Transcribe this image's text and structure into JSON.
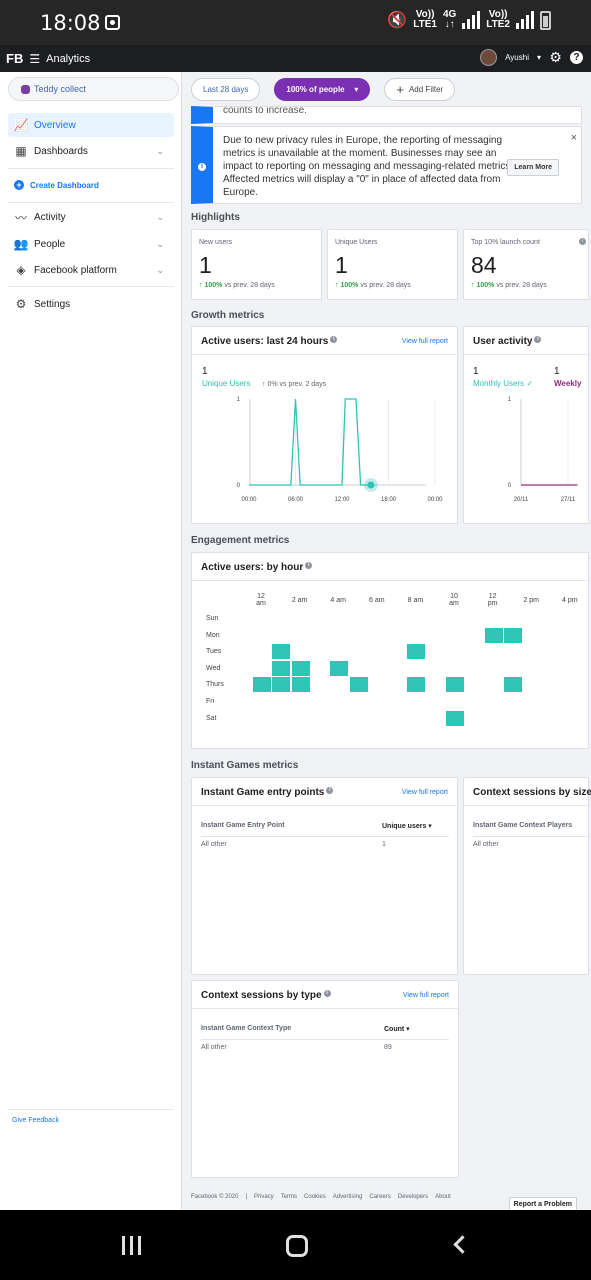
{
  "status_bar": {
    "time": "18:08",
    "net1": "Vo))",
    "net1b": "LTE1",
    "net_type": "4G",
    "net_arrows": "↓↑",
    "net2": "Vo))",
    "net2b": "LTE2"
  },
  "top_nav": {
    "logo": "FB",
    "menu_glyph": "☰",
    "title": "Analytics",
    "user": "Ayushi",
    "help": "?"
  },
  "sidebar": {
    "app_name": "Teddy collect",
    "items": [
      {
        "label": "Overview"
      },
      {
        "label": "Dashboards"
      },
      {
        "label": "Create Dashboard"
      },
      {
        "label": "Activity"
      },
      {
        "label": "People"
      },
      {
        "label": "Facebook platform"
      },
      {
        "label": "Settings"
      }
    ],
    "give_feedback": "Give Feedback"
  },
  "filters": {
    "date": "Last 28 days",
    "people": "100% of people",
    "add": "Add Filter"
  },
  "notice_partial": "counts to increase.",
  "notice": {
    "text": "Due to new privacy rules in Europe, the reporting of messaging metrics is unavailable at the moment. Businesses may see an impact to reporting on messaging and messaging-related metrics. Affected metrics will display a \"0\" in place of affected data from Europe.",
    "learn_more": "Learn More",
    "close": "×"
  },
  "highlights": {
    "title": "Highlights",
    "cards": [
      {
        "label": "New users",
        "value": "1",
        "pct": "↑ 100%",
        "vs": "vs prev. 28 days"
      },
      {
        "label": "Unique Users",
        "value": "1",
        "pct": "↑ 100%",
        "vs": "vs prev. 28 days"
      },
      {
        "label": "Top 10% launch count",
        "value": "84",
        "pct": "↑ 100%",
        "vs": "vs prev. 28 days"
      }
    ]
  },
  "growth": {
    "title": "Growth metrics",
    "active_users": {
      "title": "Active users: last 24 hours",
      "view_report": "View full report",
      "value": "1",
      "label": "Unique Users",
      "change": "↑ 0% vs prev. 2 days"
    },
    "user_activity": {
      "title": "User activity",
      "value1": "1",
      "label1": "Monthly Users ✓",
      "value2": "1",
      "label2": "Weekly"
    }
  },
  "chart_data": [
    {
      "type": "line",
      "title": "Active users: last 24 hours",
      "x": [
        "00:00",
        "06:00",
        "12:00",
        "18:00",
        "00:00"
      ],
      "yticks": [
        "0",
        "1"
      ],
      "ylim": [
        0,
        1
      ],
      "grid": true,
      "series": [
        {
          "name": "Unique Users",
          "color": "#2ec4b6",
          "points": [
            [
              0,
              0
            ],
            [
              0.9,
              0
            ],
            [
              1.0,
              1
            ],
            [
              1.1,
              0
            ],
            [
              2.0,
              0
            ],
            [
              2.07,
              1
            ],
            [
              2.3,
              1
            ],
            [
              2.4,
              0
            ],
            [
              2.6,
              0
            ]
          ]
        }
      ]
    },
    {
      "type": "line",
      "title": "User activity",
      "x": [
        "20/11",
        "27/11"
      ],
      "yticks": [
        "0",
        "1"
      ],
      "ylim": [
        0,
        1
      ],
      "grid": true,
      "series": [
        {
          "name": "Weekly",
          "color": "#8e2c7b",
          "points": [
            [
              0,
              0
            ],
            [
              1.2,
              0
            ]
          ]
        }
      ]
    },
    {
      "type": "heatmap",
      "title": "Active users: by hour",
      "hours": [
        "12 am",
        "2 am",
        "4 am",
        "6 am",
        "8 am",
        "10 am",
        "12 pm",
        "2 pm",
        "4 pm"
      ],
      "days": [
        "Sun",
        "Mon",
        "Tues",
        "Wed",
        "Thurs",
        "Fri",
        "Sat"
      ],
      "cells": [
        {
          "day": 1,
          "hour": 12
        },
        {
          "day": 1,
          "hour": 13
        },
        {
          "day": 2,
          "hour": 1
        },
        {
          "day": 2,
          "hour": 8
        },
        {
          "day": 3,
          "hour": 1
        },
        {
          "day": 3,
          "hour": 2
        },
        {
          "day": 3,
          "hour": 4
        },
        {
          "day": 4,
          "hour": 0
        },
        {
          "day": 4,
          "hour": 1
        },
        {
          "day": 4,
          "hour": 2
        },
        {
          "day": 4,
          "hour": 5
        },
        {
          "day": 4,
          "hour": 8
        },
        {
          "day": 4,
          "hour": 10
        },
        {
          "day": 4,
          "hour": 13
        },
        {
          "day": 6,
          "hour": 10
        }
      ]
    }
  ],
  "engagement": {
    "title": "Engagement metrics",
    "heatmap_title": "Active users: by hour"
  },
  "instant_games": {
    "title": "Instant Games metrics",
    "entry_points": {
      "title": "Instant Game entry points",
      "view_report": "View full report",
      "col1": "Instant Game Entry Point",
      "col2": "Unique users ▾",
      "row1_c1": "All other",
      "row1_c2": "1"
    },
    "sessions_size": {
      "title": "Context sessions by size",
      "col1": "Instant Game Context Players",
      "row1_c1": "All other"
    },
    "sessions_type": {
      "title": "Context sessions by type",
      "view_report": "View full report",
      "col1": "Instant Game Context Type",
      "col2": "Count ▾",
      "row1_c1": "All other",
      "row1_c2": "89"
    }
  },
  "footer": {
    "links": [
      "Facebook © 2020",
      "|",
      "Privacy",
      "Terms",
      "Cookies",
      "Advertising",
      "Careers",
      "Developers",
      "About"
    ],
    "report": "Report a Problem"
  }
}
